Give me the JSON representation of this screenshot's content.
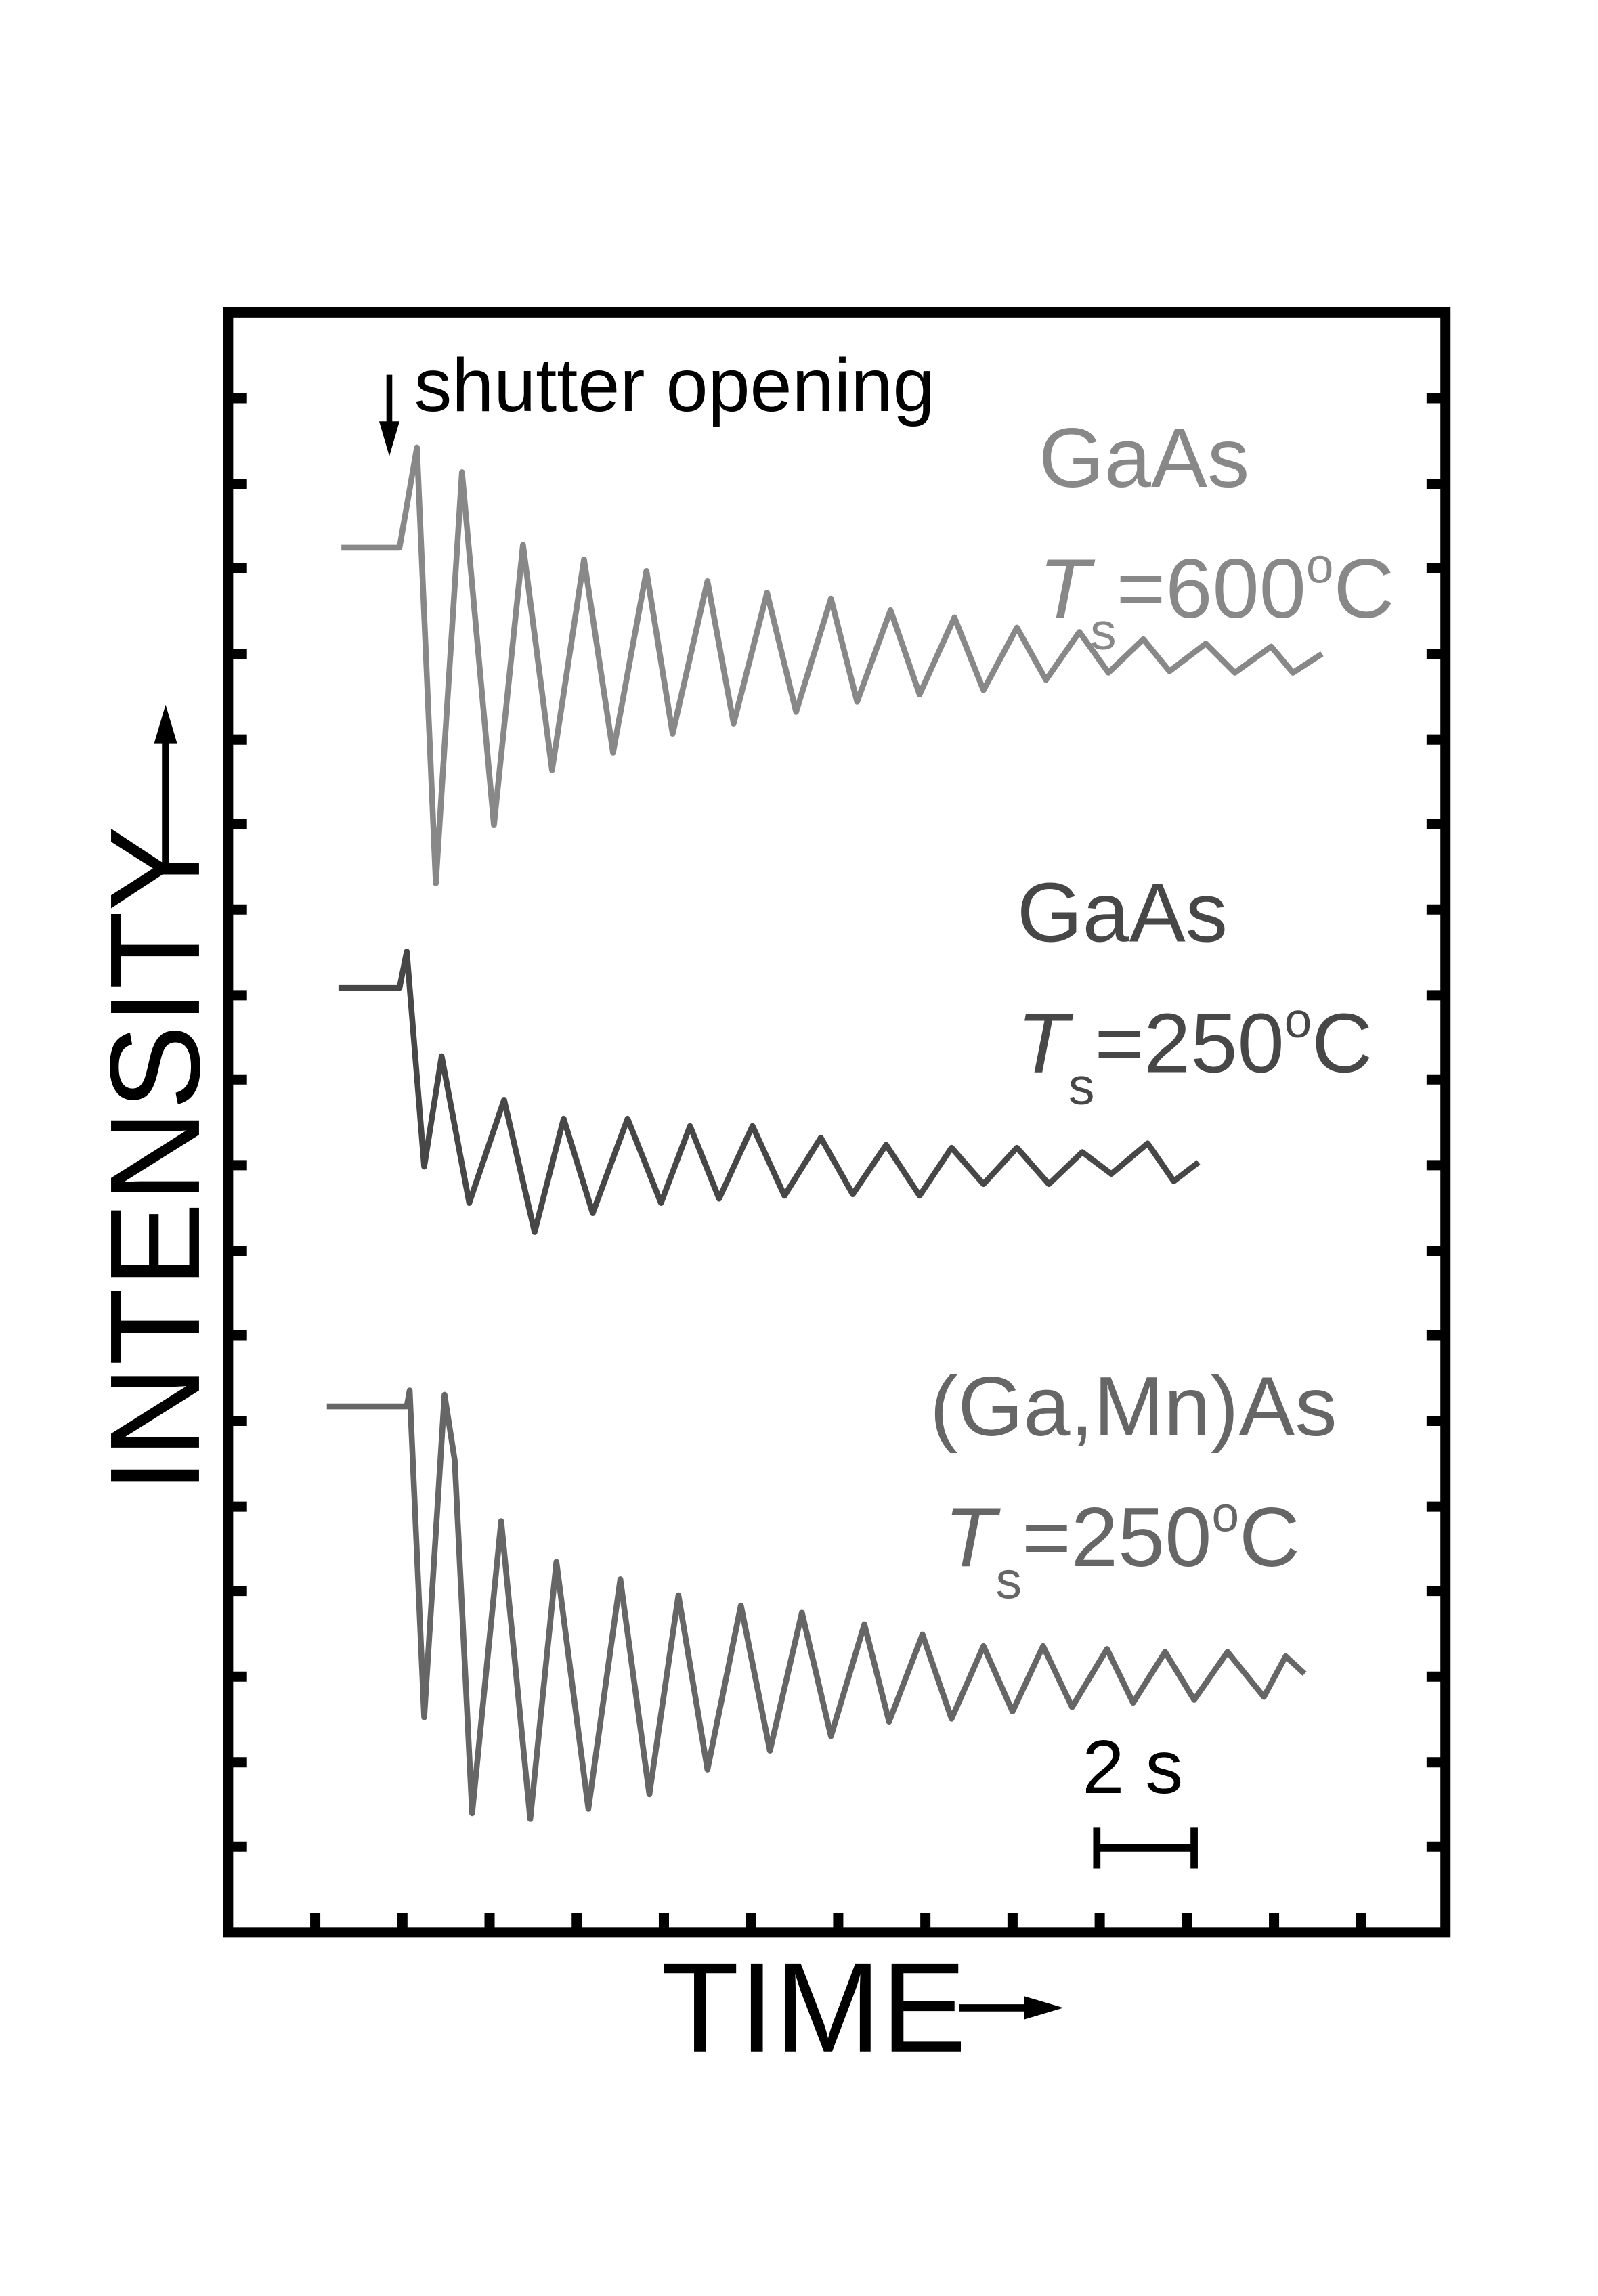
{
  "chart_data": {
    "type": "line",
    "ylabel": "INTENSITY",
    "xlabel": "TIME",
    "xlim": [
      0,
      838
    ],
    "ylim": [
      0,
      1115
    ],
    "xticks": [
      60,
      120,
      180,
      240,
      300,
      360,
      420,
      480,
      540,
      600,
      660,
      720,
      780
    ],
    "yticks": [
      59,
      117,
      176,
      235,
      293,
      352,
      411,
      469,
      528,
      587,
      645,
      704,
      763,
      821,
      880,
      939,
      997,
      1056
    ],
    "annotations": {
      "shutter": "shutter opening",
      "scale_bar": "2 s"
    },
    "series": [
      {
        "name": "GaAs",
        "color": "#888888",
        "temperature": {
          "symbol": "T",
          "sub": "s",
          "value": "=600",
          "sup": "o",
          "unit": "C"
        },
        "x": [
          78,
          118,
          130,
          143,
          161,
          183,
          203,
          223,
          245,
          265,
          288,
          306,
          330,
          348,
          371,
          391,
          415,
          433,
          456,
          476,
          500,
          520,
          543,
          563,
          586,
          606,
          630,
          648,
          673,
          693,
          718,
          733,
          753
        ],
        "values": [
          953,
          953,
          1022,
          722,
          1005,
          762,
          955,
          800,
          945,
          812,
          937,
          825,
          930,
          832,
          922,
          840,
          918,
          847,
          910,
          852,
          905,
          855,
          898,
          862,
          895,
          867,
          890,
          868,
          887,
          867,
          885,
          867,
          880
        ]
      },
      {
        "name": "GaAs",
        "color": "#474747",
        "temperature": {
          "symbol": "T",
          "sub": "s",
          "value": "=250",
          "sup": "o",
          "unit": "C"
        },
        "x": [
          76,
          118,
          123,
          135,
          147,
          166,
          190,
          211,
          231,
          251,
          275,
          298,
          318,
          338,
          361,
          383,
          408,
          430,
          453,
          476,
          498,
          520,
          543,
          565,
          588,
          608,
          633,
          651,
          668
        ],
        "values": [
          650,
          650,
          675,
          527,
          603,
          502,
          573,
          482,
          560,
          495,
          560,
          502,
          555,
          505,
          555,
          507,
          547,
          508,
          542,
          507,
          540,
          515,
          540,
          515,
          537,
          522,
          543,
          517,
          530
        ]
      },
      {
        "name": "(Ga,Mn)As",
        "color": "#666666",
        "temperature": {
          "symbol": "T",
          "sub": "s",
          "value": "=250",
          "sup": "o",
          "unit": "C"
        },
        "x": [
          68,
          123,
          125,
          135,
          149,
          156,
          168,
          188,
          208,
          226,
          248,
          270,
          290,
          310,
          330,
          353,
          373,
          395,
          415,
          438,
          455,
          478,
          498,
          520,
          540,
          561,
          581,
          605,
          623,
          645,
          665,
          688,
          713,
          728,
          741
        ],
        "values": [
          362,
          362,
          373,
          148,
          370,
          325,
          82,
          283,
          78,
          255,
          85,
          243,
          95,
          232,
          112,
          225,
          125,
          220,
          135,
          212,
          145,
          205,
          147,
          197,
          152,
          197,
          155,
          195,
          158,
          193,
          160,
          193,
          162,
          190,
          178
        ]
      }
    ]
  }
}
